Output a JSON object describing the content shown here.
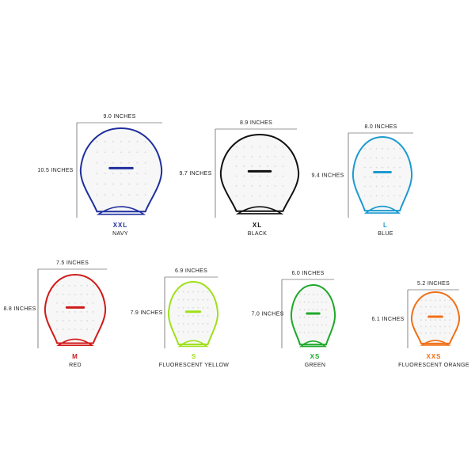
{
  "sizes": [
    {
      "width": "9.0 INCHES",
      "height": "10.5 INCHES",
      "size": "XXL",
      "color": "NAVY"
    },
    {
      "width": "8.9 INCHES",
      "height": "9.7 INCHES",
      "size": "XL",
      "color": "BLACK"
    },
    {
      "width": "8.0 INCHES",
      "height": "9.4 INCHES",
      "size": "L",
      "color": "BLUE"
    },
    {
      "width": "7.5 INCHES",
      "height": "8.8 INCHES",
      "size": "M",
      "color": "RED"
    },
    {
      "width": "6.9 INCHES",
      "height": "7.9 INCHES",
      "size": "S",
      "color": "FLUORESCENT YELLOW"
    },
    {
      "width": "6.0 INCHES",
      "height": "7.0 INCHES",
      "size": "XS",
      "color": "GREEN"
    },
    {
      "width": "5.2 INCHES",
      "height": "6.1 INCHES",
      "size": "XXS",
      "color": "FLUORESCENT ORANGE"
    }
  ]
}
